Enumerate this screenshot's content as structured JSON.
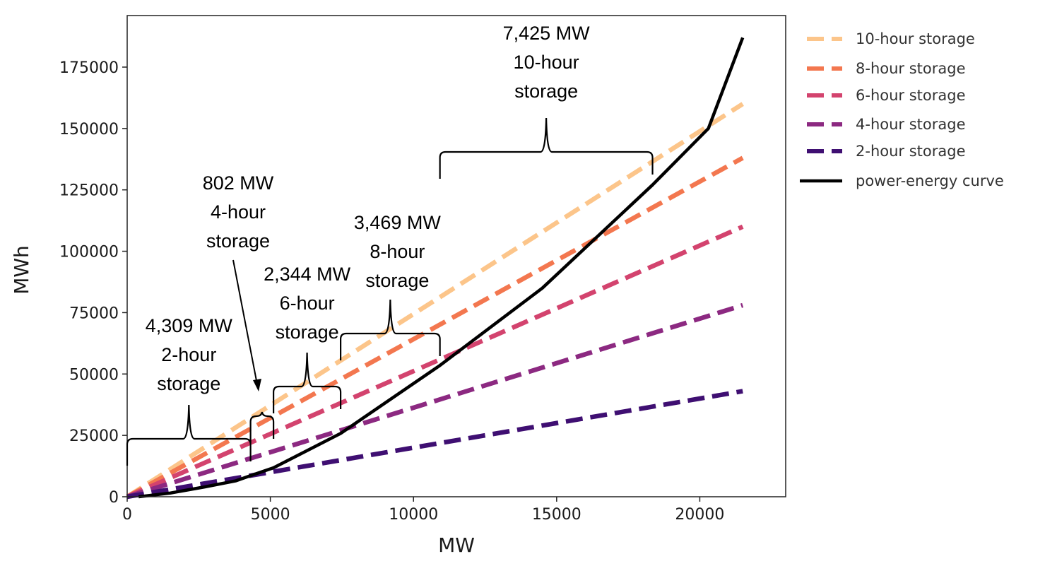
{
  "chart_data": {
    "type": "line",
    "xlabel": "MW",
    "ylabel": "MWh",
    "xlim": [
      0,
      23000
    ],
    "ylim": [
      0,
      196000
    ],
    "xticks": [
      0,
      5000,
      10000,
      15000,
      20000
    ],
    "yticks": [
      0,
      25000,
      50000,
      75000,
      100000,
      125000,
      150000,
      175000
    ],
    "grid": false,
    "legend_position": "right, outside plot",
    "series": [
      {
        "name": "10-hour storage",
        "style": "dashed",
        "color": "#fcc58a",
        "x": [
          0,
          21500
        ],
        "y": [
          0,
          160000
        ]
      },
      {
        "name": "8-hour storage",
        "style": "dashed",
        "color": "#f3774f",
        "x": [
          0,
          21500
        ],
        "y": [
          0,
          138000
        ]
      },
      {
        "name": "6-hour storage",
        "style": "dashed",
        "color": "#d3436e",
        "x": [
          0,
          21500
        ],
        "y": [
          0,
          110000
        ]
      },
      {
        "name": "4-hour storage",
        "style": "dashed",
        "color": "#8c2981",
        "x": [
          0,
          21500
        ],
        "y": [
          0,
          78000
        ]
      },
      {
        "name": "2-hour storage",
        "style": "dashed",
        "color": "#3f0f72",
        "x": [
          0,
          21500
        ],
        "y": [
          0,
          43000
        ]
      },
      {
        "name": "power-energy curve",
        "style": "solid",
        "color": "#000000",
        "x": [
          400,
          1500,
          2700,
          3800,
          4309,
          5111,
          7455,
          10924,
          14500,
          18349,
          20300,
          21500
        ],
        "y": [
          0,
          1500,
          4000,
          6500,
          8600,
          11800,
          25800,
          53500,
          85000,
          127000,
          150000,
          187000
        ]
      }
    ],
    "annotations": [
      {
        "lines": [
          "4,309 MW",
          "2-hour",
          "storage"
        ],
        "x_range": [
          0,
          4309
        ]
      },
      {
        "lines": [
          "802 MW",
          "4-hour",
          "storage"
        ],
        "x_range": [
          4309,
          5111
        ]
      },
      {
        "lines": [
          "2,344 MW",
          "6-hour",
          "storage"
        ],
        "x_range": [
          5111,
          7455
        ]
      },
      {
        "lines": [
          "3,469 MW",
          "8-hour",
          "storage"
        ],
        "x_range": [
          7455,
          10924
        ]
      },
      {
        "lines": [
          "7,425 MW",
          "10-hour",
          "storage"
        ],
        "x_range": [
          10924,
          18349
        ]
      }
    ]
  }
}
